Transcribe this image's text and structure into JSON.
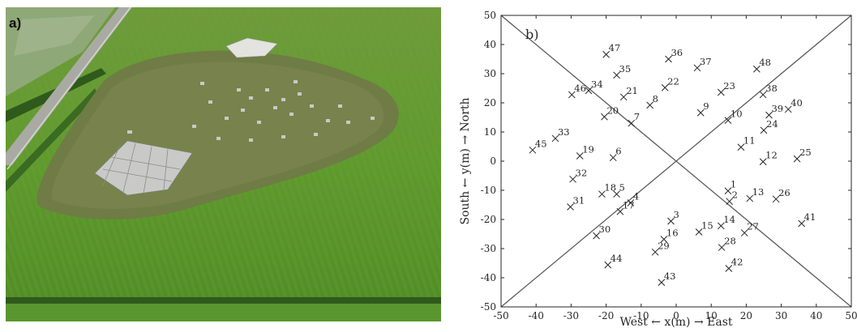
{
  "panel_a": {
    "label": "a)"
  },
  "chart_data": {
    "type": "scatter",
    "panel_label": "b)",
    "xlabel": "West ← x(m) → East",
    "ylabel": "South ← y(m) → North",
    "xlim": [
      -50,
      50
    ],
    "ylim": [
      -50,
      50
    ],
    "xticks": [
      "-50",
      "-40",
      "-30",
      "-20",
      "-10",
      "0",
      "10",
      "20",
      "30",
      "40",
      "50"
    ],
    "yticks": [
      "-50",
      "-40",
      "-30",
      "-20",
      "-10",
      "0",
      "10",
      "20",
      "30",
      "40",
      "50"
    ],
    "grid": false,
    "marker": "x",
    "reference_lines": [
      {
        "from": [
          -50,
          50
        ],
        "to": [
          50,
          -50
        ]
      },
      {
        "from": [
          -50,
          -50
        ],
        "to": [
          50,
          50
        ]
      }
    ],
    "points": [
      {
        "label": "1",
        "x": 14.8,
        "y": -10.2
      },
      {
        "label": "2",
        "x": 15.2,
        "y": -13.8
      },
      {
        "label": "3",
        "x": -1.5,
        "y": -20.6
      },
      {
        "label": "4",
        "x": -13,
        "y": -14.3
      },
      {
        "label": "5",
        "x": -17,
        "y": -11.3
      },
      {
        "label": "6",
        "x": -18,
        "y": 1.2
      },
      {
        "label": "7",
        "x": -12.8,
        "y": 13
      },
      {
        "label": "8",
        "x": -7.5,
        "y": 19.2
      },
      {
        "label": "9",
        "x": 7,
        "y": 16.6
      },
      {
        "label": "10",
        "x": 14.8,
        "y": 14
      },
      {
        "label": "11",
        "x": 18.5,
        "y": 4.8
      },
      {
        "label": "12",
        "x": 24.8,
        "y": -0.2
      },
      {
        "label": "13",
        "x": 21,
        "y": -12.8
      },
      {
        "label": "14",
        "x": 12.8,
        "y": -22.2
      },
      {
        "label": "15",
        "x": 6.5,
        "y": -24.3
      },
      {
        "label": "16",
        "x": -3.5,
        "y": -26.8
      },
      {
        "label": "17",
        "x": -16,
        "y": -17.3
      },
      {
        "label": "18",
        "x": -21.2,
        "y": -11.3
      },
      {
        "label": "19",
        "x": -27.5,
        "y": 1.8
      },
      {
        "label": "20",
        "x": -20.5,
        "y": 15.2
      },
      {
        "label": "21",
        "x": -15,
        "y": 22
      },
      {
        "label": "22",
        "x": -3.2,
        "y": 25.2
      },
      {
        "label": "23",
        "x": 12.8,
        "y": 23.6
      },
      {
        "label": "24",
        "x": 25,
        "y": 10.6
      },
      {
        "label": "25",
        "x": 34.5,
        "y": 0.8
      },
      {
        "label": "26",
        "x": 28.5,
        "y": -13
      },
      {
        "label": "27",
        "x": 19.5,
        "y": -24.6
      },
      {
        "label": "28",
        "x": 13,
        "y": -29.6
      },
      {
        "label": "29",
        "x": -6,
        "y": -31.2
      },
      {
        "label": "30",
        "x": -22.8,
        "y": -25.6
      },
      {
        "label": "31",
        "x": -30.2,
        "y": -15.7
      },
      {
        "label": "32",
        "x": -29.5,
        "y": -6.2
      },
      {
        "label": "33",
        "x": -34.5,
        "y": 7.8
      },
      {
        "label": "34",
        "x": -25,
        "y": 24.2
      },
      {
        "label": "35",
        "x": -17,
        "y": 29.5
      },
      {
        "label": "36",
        "x": -2.2,
        "y": 35
      },
      {
        "label": "37",
        "x": 6,
        "y": 32
      },
      {
        "label": "38",
        "x": 24.8,
        "y": 22.8
      },
      {
        "label": "39",
        "x": 26.5,
        "y": 15.8
      },
      {
        "label": "40",
        "x": 32,
        "y": 17.8
      },
      {
        "label": "41",
        "x": 35.8,
        "y": -21.4
      },
      {
        "label": "42",
        "x": 15,
        "y": -36.8
      },
      {
        "label": "43",
        "x": -4.2,
        "y": -41.6
      },
      {
        "label": "44",
        "x": -19.5,
        "y": -35.6
      },
      {
        "label": "45",
        "x": -41,
        "y": 3.8
      },
      {
        "label": "46",
        "x": -29.8,
        "y": 22.8
      },
      {
        "label": "47",
        "x": -20,
        "y": 36.6
      },
      {
        "label": "48",
        "x": 23,
        "y": 31.6
      }
    ]
  }
}
